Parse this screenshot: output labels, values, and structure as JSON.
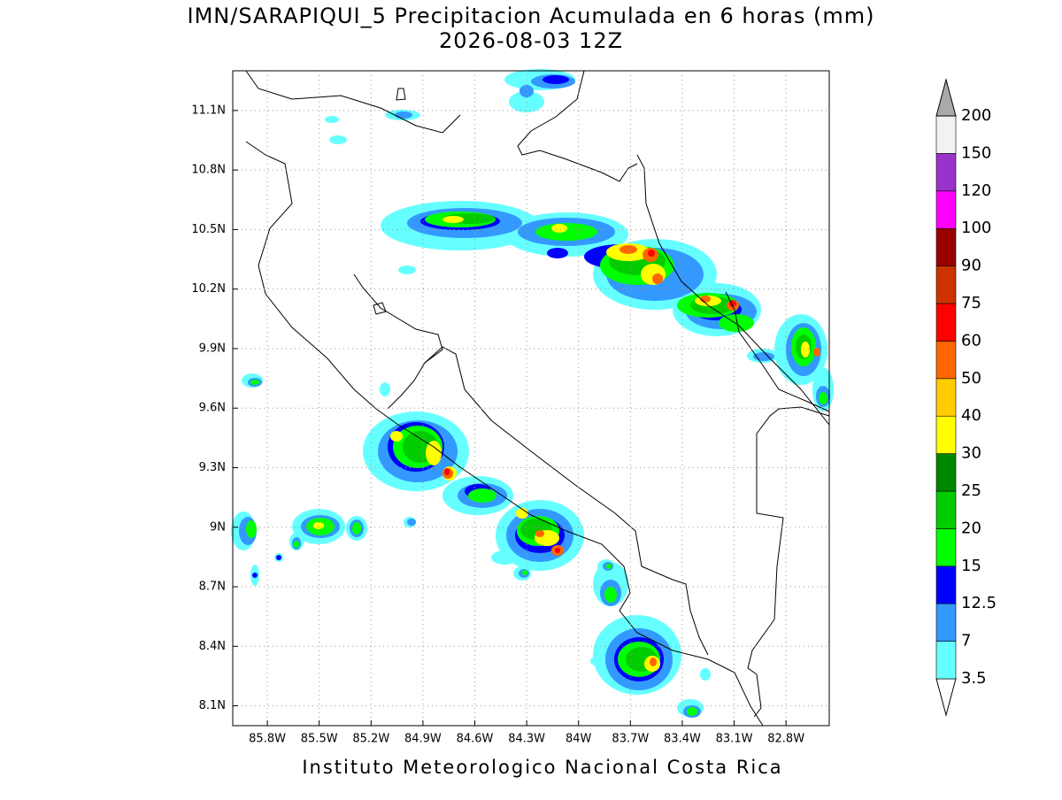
{
  "title": "IMN/SARAPIQUI_5 Precipitacion Acumulada en 6 horas (mm)",
  "subtitle": "2026-08-03 12Z",
  "map": {
    "xlim": [
      -86.0,
      -82.55
    ],
    "ylim": [
      8.0,
      11.3
    ],
    "grid": true,
    "xticks": [
      {
        "value": -85.8,
        "label": "85.8W"
      },
      {
        "value": -85.5,
        "label": "85.5W"
      },
      {
        "value": -85.2,
        "label": "85.2W"
      },
      {
        "value": -84.9,
        "label": "84.9W"
      },
      {
        "value": -84.6,
        "label": "84.6W"
      },
      {
        "value": -84.3,
        "label": "84.3W"
      },
      {
        "value": -84.0,
        "label": "84W"
      },
      {
        "value": -83.7,
        "label": "83.7W"
      },
      {
        "value": -83.4,
        "label": "83.4W"
      },
      {
        "value": -83.1,
        "label": "83.1W"
      },
      {
        "value": -82.8,
        "label": "82.8W"
      }
    ],
    "yticks": [
      {
        "value": 8.1,
        "label": "8.1N"
      },
      {
        "value": 8.4,
        "label": "8.4N"
      },
      {
        "value": 8.7,
        "label": "8.7N"
      },
      {
        "value": 9.0,
        "label": "9N"
      },
      {
        "value": 9.3,
        "label": "9.3N"
      },
      {
        "value": 9.6,
        "label": "9.6N"
      },
      {
        "value": 9.9,
        "label": "9.9N"
      },
      {
        "value": 10.2,
        "label": "10.2N"
      },
      {
        "value": 10.5,
        "label": "10.5N"
      },
      {
        "value": 10.8,
        "label": "10.8N"
      },
      {
        "value": 11.1,
        "label": "11.1N"
      }
    ]
  },
  "colorbar": {
    "levels": [
      3.5,
      7,
      12.5,
      15,
      20,
      25,
      30,
      40,
      50,
      60,
      75,
      90,
      100,
      120,
      150,
      200
    ],
    "colors": [
      "#ffffff",
      "#66ffff",
      "#3399ff",
      "#0000ff",
      "#00ff00",
      "#00cc00",
      "#008800",
      "#ffff00",
      "#ffcc00",
      "#ff6600",
      "#ff0000",
      "#cc3300",
      "#990000",
      "#ff00ff",
      "#9933cc",
      "#f2f2f2",
      "#aaaaaa"
    ]
  },
  "footer": "Instituto Meteorologico Nacional Costa Rica"
}
